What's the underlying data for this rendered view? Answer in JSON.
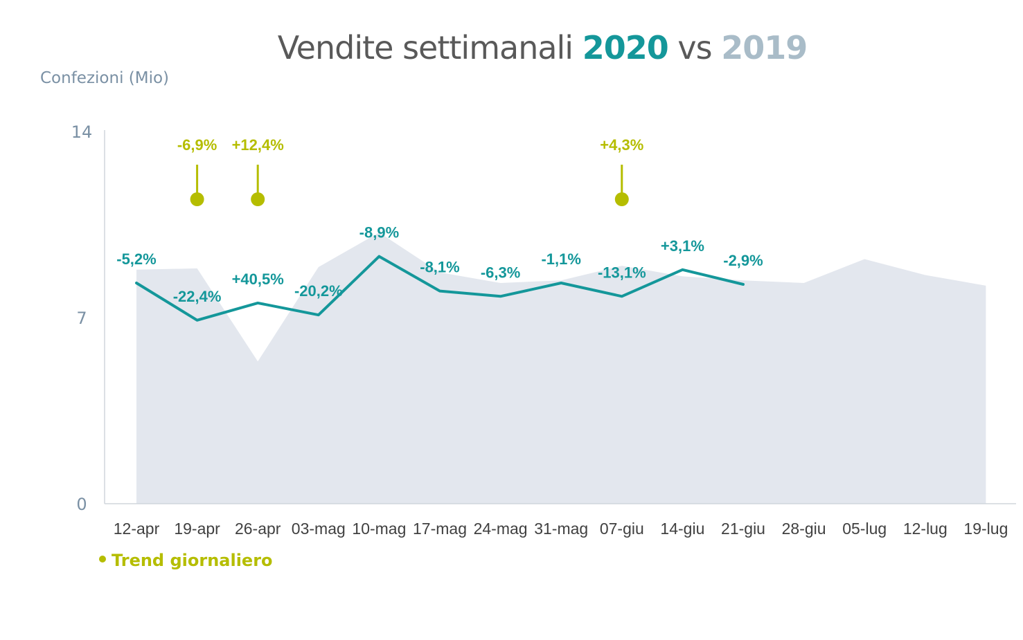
{
  "title": {
    "prefix": "Vendite settimanali ",
    "year_2020": "2020",
    "middle": " vs ",
    "year_2019": "2019"
  },
  "legend": {
    "label": "Trend giornaliero"
  },
  "chart_data": {
    "type": "line",
    "title": "Vendite settimanali 2020 vs 2019",
    "ylabel": "Confezioni (Mio)",
    "xlabel": "",
    "ylim": [
      0,
      14
    ],
    "yticks": [
      0,
      7,
      14
    ],
    "categories": [
      "12-apr",
      "19-apr",
      "26-apr",
      "03-mag",
      "10-mag",
      "17-mag",
      "24-mag",
      "31-mag",
      "07-giu",
      "14-giu",
      "21-giu",
      "28-giu",
      "05-lug",
      "12-lug",
      "19-lug"
    ],
    "series": [
      {
        "name": "2019",
        "type": "area",
        "color": "#E3E7EE",
        "values": [
          8.8,
          8.85,
          5.35,
          8.9,
          10.2,
          8.7,
          8.3,
          8.4,
          8.95,
          8.55,
          8.4,
          8.3,
          9.2,
          8.6,
          8.2
        ]
      },
      {
        "name": "2020",
        "type": "line",
        "color": "#14979A",
        "values": [
          8.3,
          6.9,
          7.55,
          7.1,
          9.3,
          8.0,
          7.8,
          8.3,
          7.8,
          8.8,
          8.25,
          null,
          null,
          null,
          null
        ],
        "labels": [
          "-5,2%",
          "-22,4%",
          "+40,5%",
          "-20,2%",
          "-8,9%",
          "-8,1%",
          "-6,3%",
          "-1,1%",
          "-13,1%",
          "+3,1%",
          "-2,9%",
          "",
          "",
          "",
          ""
        ]
      }
    ],
    "trend_markers": {
      "name": "Trend giornaliero",
      "color": "#B5BD00",
      "points": [
        {
          "category": "19-apr",
          "label": "-6,9%"
        },
        {
          "category": "26-apr",
          "label": "+12,4%"
        },
        {
          "category": "07-giu",
          "label": "+4,3%"
        }
      ]
    },
    "grid": false,
    "legend": "bottom-left"
  }
}
